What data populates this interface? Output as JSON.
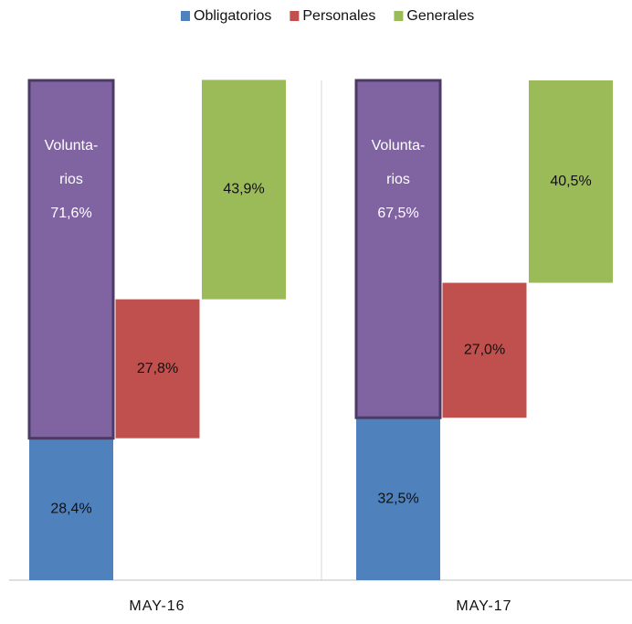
{
  "chart_data": {
    "type": "waterfall",
    "categories": [
      "MAY-16",
      "MAY-17"
    ],
    "ylim": [
      0,
      100
    ],
    "series": [
      {
        "name": "Obligatorios",
        "color": "#4f81bd",
        "values": [
          28.4,
          32.5
        ],
        "value_labels": [
          "28,4%",
          "32,5%"
        ]
      },
      {
        "label_lines": [
          "Volunta-",
          "rios"
        ],
        "color": "#8064a2",
        "values": [
          71.6,
          67.5
        ],
        "value_labels": [
          "71,6%",
          "67,5%"
        ]
      },
      {
        "name": "Personales",
        "color": "#c0504d",
        "values": [
          27.8,
          27.0
        ],
        "value_labels": [
          "27,8%",
          "27,0%"
        ]
      },
      {
        "name": "Generales",
        "color": "#9bbb59",
        "values": [
          43.9,
          40.5
        ],
        "value_labels": [
          "43,9%",
          "40,5%"
        ]
      }
    ]
  }
}
